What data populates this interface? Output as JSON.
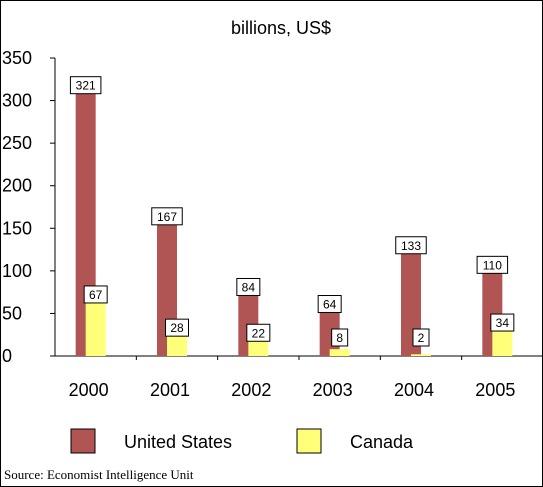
{
  "chart_data": {
    "type": "bar",
    "title": "billions, US$",
    "categories": [
      "2000",
      "2001",
      "2002",
      "2003",
      "2004",
      "2005"
    ],
    "series": [
      {
        "name": "United States",
        "values": [
          321,
          167,
          84,
          64,
          133,
          110
        ],
        "color": "#b05454"
      },
      {
        "name": "Canada",
        "values": [
          67,
          28,
          22,
          8,
          2,
          34
        ],
        "color": "#ffff7a"
      }
    ],
    "ylim": [
      0,
      350
    ],
    "yticks": [
      "0",
      "50",
      "100",
      "150",
      "200",
      "250",
      "300",
      "350"
    ],
    "grid": false,
    "legend": "bottom",
    "data_labels": true
  },
  "source": "Source: Economist Intelligence Unit"
}
